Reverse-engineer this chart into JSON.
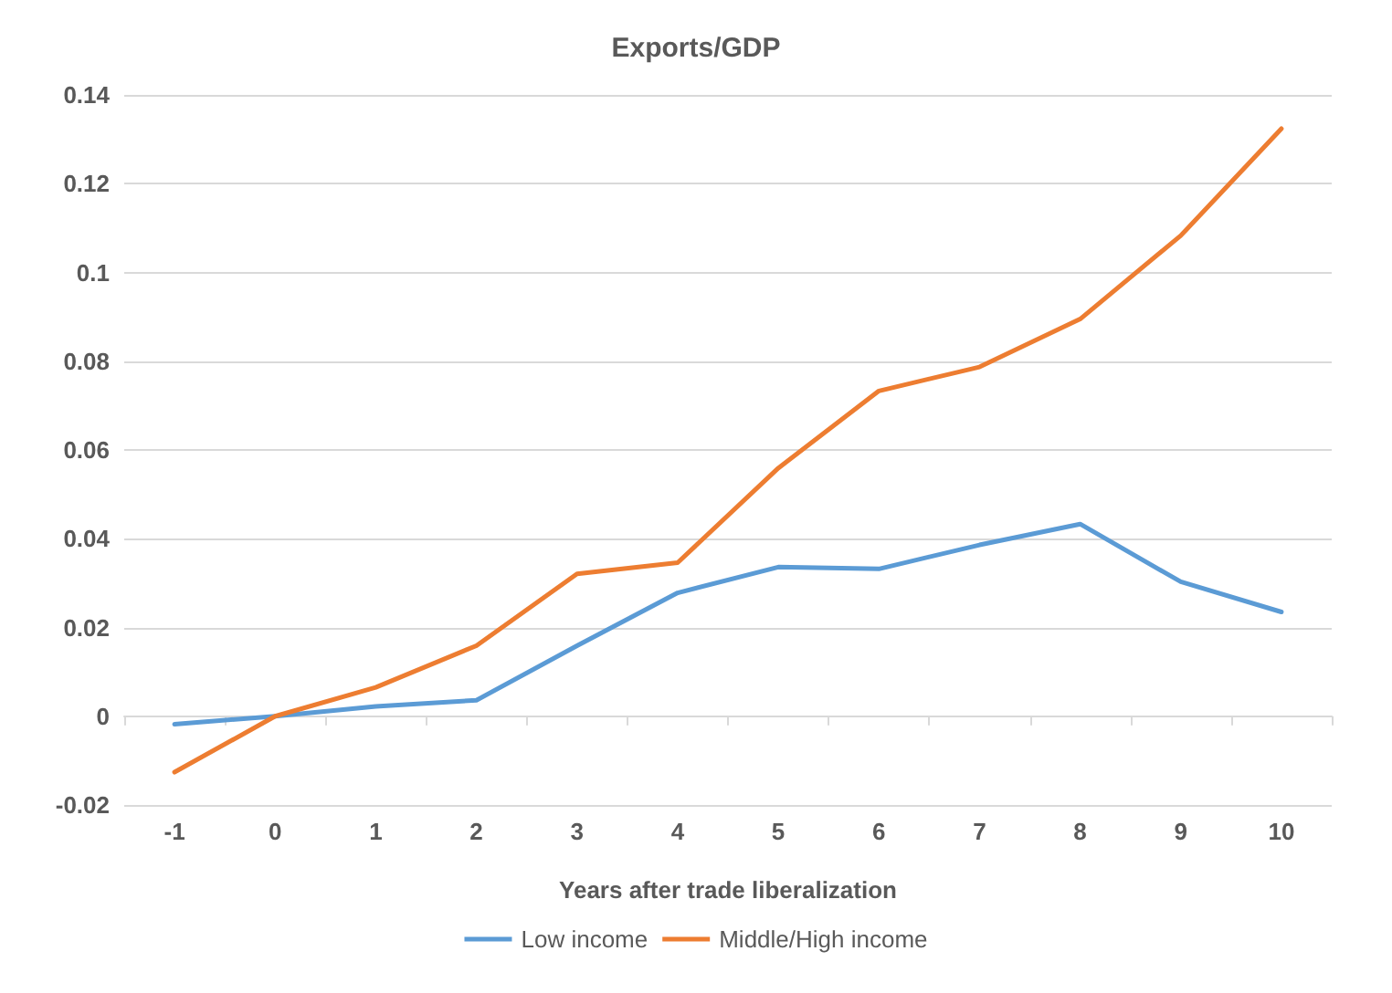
{
  "chart_data": {
    "type": "line",
    "title": "Exports/GDP",
    "xlabel": "Years after trade liberalization",
    "categories": [
      "-1",
      "0",
      "1",
      "2",
      "3",
      "4",
      "5",
      "6",
      "7",
      "8",
      "9",
      "10"
    ],
    "series": [
      {
        "name": "Low income",
        "color": "#5b9bd5",
        "values": [
          -0.0018,
          0,
          0.0022,
          0.0036,
          0.0159,
          0.0278,
          0.0336,
          0.0332,
          0.0386,
          0.0433,
          0.0303,
          0.0235
        ]
      },
      {
        "name": "Middle/High income",
        "color": "#ed7d31",
        "values": [
          -0.0126,
          0,
          0.0065,
          0.0159,
          0.0321,
          0.0346,
          0.0559,
          0.0733,
          0.0787,
          0.0895,
          0.1083,
          0.1324
        ]
      }
    ],
    "ylim": [
      -0.02,
      0.14
    ],
    "yticks": [
      -0.02,
      0,
      0.02,
      0.04,
      0.06,
      0.08,
      0.1,
      0.12,
      0.14
    ],
    "grid": "y",
    "legend": "bottom",
    "marker": "none",
    "line_style": "solid"
  }
}
